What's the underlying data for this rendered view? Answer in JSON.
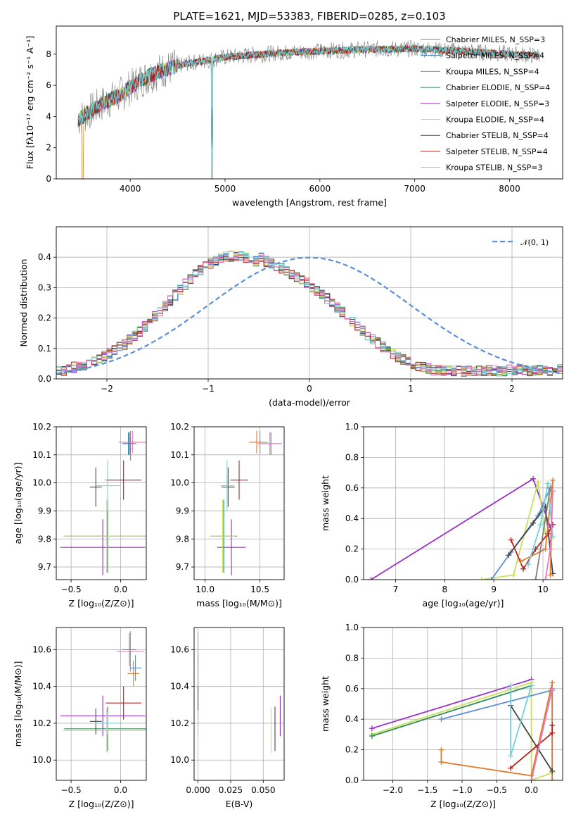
{
  "title": "PLATE=1621, MJD=53383, FIBERID=0285, z=0.103",
  "chart_data": [
    {
      "id": "spectrum",
      "type": "line",
      "xlabel": "wavelength [Angstrom, rest frame]",
      "ylabel": "Flux [fλ10⁻¹⁷ erg cm⁻² s⁻¹ A⁻¹]",
      "xlim": [
        3220,
        8560
      ],
      "ylim": [
        0,
        9.8
      ],
      "xticks": [
        4000,
        5000,
        6000,
        7000,
        8000
      ],
      "yticks": [
        0,
        2,
        4,
        6,
        8
      ],
      "grid": false,
      "legend_position": "right",
      "continuum": {
        "x": [
          3450,
          3550,
          3700,
          3900,
          4100,
          4300,
          4600,
          5000,
          5500,
          6000,
          6500,
          7000,
          7500,
          8000,
          8320
        ],
        "y": [
          3.8,
          4.2,
          4.8,
          5.4,
          6.3,
          6.9,
          7.4,
          7.8,
          8.05,
          8.2,
          8.3,
          8.35,
          8.2,
          8.0,
          7.9
        ]
      },
      "series": [
        {
          "name": "Chabrier MILES, N_SSP=3",
          "color": "#808080"
        },
        {
          "name": "Salpeter MILES, N_SSP=4",
          "color": "#1f77b4"
        },
        {
          "name": "Kroupa MILES, N_SSP=4",
          "color": "#e07b2a"
        },
        {
          "name": "Chabrier ELODIE, N_SSP=4",
          "color": "#2e8b57"
        },
        {
          "name": "Salpeter ELODIE, N_SSP=3",
          "color": "#9b30c8"
        },
        {
          "name": "Kroupa ELODIE, N_SSP=4",
          "color": "#c8e05a"
        },
        {
          "name": "Chabrier STELIB, N_SSP=4",
          "color": "#444444"
        },
        {
          "name": "Salpeter STELIB, N_SSP=4",
          "color": "#b22222"
        },
        {
          "name": "Kroupa STELIB, N_SSP=3",
          "color": "#6fd3da"
        }
      ]
    },
    {
      "id": "residuals",
      "type": "line",
      "xlabel": "(data-model)/error",
      "ylabel": "Normed distribution",
      "xlim": [
        -2.5,
        2.5
      ],
      "ylim": [
        0,
        0.5
      ],
      "xticks": [
        -2,
        -1,
        0,
        1,
        2
      ],
      "yticks": [
        0.0,
        0.1,
        0.2,
        0.3,
        0.4
      ],
      "grid": true,
      "legend": "𝒩(0, 1)",
      "legend_position": "top-right",
      "gaussian": {
        "mean": 0,
        "sigma": 1,
        "color": "#5b8fd9"
      },
      "histogram": {
        "bin_width": 0.1,
        "x_start": -2.5,
        "base": [
          0.028,
          0.027,
          0.032,
          0.038,
          0.04,
          0.046,
          0.052,
          0.058,
          0.066,
          0.074,
          0.083,
          0.092,
          0.104,
          0.114,
          0.128,
          0.141,
          0.156,
          0.172,
          0.188,
          0.205,
          0.222,
          0.24,
          0.259,
          0.276,
          0.294,
          0.311,
          0.328,
          0.343,
          0.357,
          0.369,
          0.38,
          0.389,
          0.396,
          0.401,
          0.403,
          0.404,
          0.402,
          0.399,
          0.394,
          0.387,
          0.399,
          0.386,
          0.38,
          0.372,
          0.363,
          0.353,
          0.345,
          0.337,
          0.328,
          0.316,
          0.302,
          0.291,
          0.279,
          0.264,
          0.252,
          0.236,
          0.221,
          0.206,
          0.19,
          0.174,
          0.16,
          0.145,
          0.131,
          0.118,
          0.105,
          0.093,
          0.082,
          0.073,
          0.064,
          0.056,
          0.049,
          0.043,
          0.038,
          0.033,
          0.029,
          0.03,
          0.026,
          0.028,
          0.025,
          0.027,
          0.024,
          0.026,
          0.025,
          0.026,
          0.025,
          0.026,
          0.028,
          0.025,
          0.027,
          0.03,
          0.028,
          0.03,
          0.029,
          0.027,
          0.028,
          0.03,
          0.027,
          0.028,
          0.029,
          0.03
        ]
      }
    },
    {
      "id": "age_vs_Z",
      "type": "scatter",
      "xlabel": "Z [log₁₀(Z/Z⊙)]",
      "ylabel": "age  [log₁₀(age/yr)]",
      "xlim": [
        -0.65,
        0.26
      ],
      "ylim": [
        9.655,
        10.2
      ],
      "xticks": [
        -0.5,
        0.0
      ],
      "yticks": [
        9.7,
        9.8,
        9.9,
        10.0,
        10.1,
        10.2
      ],
      "grid": true,
      "points": [
        {
          "x": 0.09,
          "y": 10.14,
          "xerr": 0.07,
          "yerr": 0.04,
          "color": "#808080"
        },
        {
          "x": 0.08,
          "y": 10.14,
          "xerr": 0.06,
          "yerr": 0.04,
          "color": "#1f77b4"
        },
        {
          "x": 0.1,
          "y": 10.145,
          "xerr": 0.06,
          "yerr": 0.04,
          "color": "#e07b2a"
        },
        {
          "x": -0.13,
          "y": 9.81,
          "xerr": 0.44,
          "yerr": 0.13,
          "color": "#2e8b57"
        },
        {
          "x": -0.18,
          "y": 9.77,
          "xerr": 0.43,
          "yerr": 0.1,
          "color": "#9b30c8"
        },
        {
          "x": -0.14,
          "y": 9.81,
          "xerr": 0.44,
          "yerr": 0.13,
          "color": "#c8e05a"
        },
        {
          "x": -0.25,
          "y": 9.985,
          "xerr": 0.06,
          "yerr": 0.07,
          "color": "#444444"
        },
        {
          "x": 0.03,
          "y": 10.01,
          "xerr": 0.18,
          "yerr": 0.07,
          "color": "#b22222"
        },
        {
          "x": -0.13,
          "y": 9.99,
          "xerr": 0.13,
          "yerr": 0.09,
          "color": "#6fd3da"
        },
        {
          "x": 0.12,
          "y": 10.145,
          "xerr": 0.14,
          "yerr": 0.04,
          "color": "#e377c2"
        },
        {
          "x": 0.1,
          "y": 10.12,
          "xerr": 0.01,
          "yerr": 0.04,
          "color": "#5b8fd9"
        }
      ]
    },
    {
      "id": "age_vs_mass",
      "type": "scatter",
      "xlabel": "mass [log₁₀(M/M⊙)]",
      "ylabel": "",
      "xlim": [
        9.9,
        10.72
      ],
      "ylim": [
        9.655,
        10.2
      ],
      "xticks": [
        10.0,
        10.5
      ],
      "yticks": [
        9.7,
        9.8,
        9.9,
        10.0,
        10.1,
        10.2
      ],
      "grid": true,
      "points": [
        {
          "x": 10.6,
          "y": 10.14,
          "xerr": 0.09,
          "yerr": 0.04,
          "color": "#808080"
        },
        {
          "x": 10.5,
          "y": 10.145,
          "xerr": 0.07,
          "yerr": 0.04,
          "color": "#5b8fd9"
        },
        {
          "x": 10.47,
          "y": 10.145,
          "xerr": 0.07,
          "yerr": 0.04,
          "color": "#e07b2a"
        },
        {
          "x": 10.17,
          "y": 9.81,
          "xerr": 0.12,
          "yerr": 0.13,
          "color": "#2e8b57"
        },
        {
          "x": 10.24,
          "y": 9.77,
          "xerr": 0.13,
          "yerr": 0.1,
          "color": "#9b30c8"
        },
        {
          "x": 10.16,
          "y": 9.81,
          "xerr": 0.12,
          "yerr": 0.13,
          "color": "#c8e05a"
        },
        {
          "x": 10.21,
          "y": 9.985,
          "xerr": 0.06,
          "yerr": 0.07,
          "color": "#444444"
        },
        {
          "x": 10.31,
          "y": 10.01,
          "xerr": 0.08,
          "yerr": 0.07,
          "color": "#b22222"
        },
        {
          "x": 10.2,
          "y": 9.99,
          "xerr": 0.06,
          "yerr": 0.09,
          "color": "#6fd3da"
        },
        {
          "x": 10.59,
          "y": 10.14,
          "xerr": 0.11,
          "yerr": 0.04,
          "color": "#e377c2"
        }
      ]
    },
    {
      "id": "mass_weight_vs_age",
      "type": "line",
      "xlabel": "age  [log₁₀(age/yr)]",
      "ylabel": "mass weight",
      "xlim": [
        6.35,
        10.4
      ],
      "ylim": [
        0,
        1
      ],
      "xticks": [
        7,
        8,
        9,
        10
      ],
      "yticks": [
        0.0,
        0.2,
        0.4,
        0.6,
        0.8,
        1.0
      ],
      "grid": true,
      "series": [
        {
          "color": "#9b30c8",
          "x": [
            6.5,
            9.8,
            10.15
          ],
          "y": [
            0.0,
            0.66,
            0.34
          ]
        },
        {
          "color": "#c8e05a",
          "x": [
            8.75,
            9.4,
            9.9,
            10.05
          ],
          "y": [
            0.0,
            0.03,
            0.64,
            0.3
          ]
        },
        {
          "color": "#5b8fd9",
          "x": [
            8.95,
            9.35,
            9.9,
            10.15
          ],
          "y": [
            0.0,
            0.18,
            0.42,
            0.6
          ]
        },
        {
          "color": "#444444",
          "x": [
            9.3,
            9.8,
            10.05,
            10.2
          ],
          "y": [
            0.16,
            0.37,
            0.48,
            0.04
          ]
        },
        {
          "color": "#b22222",
          "x": [
            9.35,
            9.6,
            9.85,
            10.1,
            10.2
          ],
          "y": [
            0.26,
            0.07,
            0.2,
            0.3,
            0.36
          ]
        },
        {
          "color": "#e07b2a",
          "x": [
            9.55,
            10.05,
            10.2,
            10.15
          ],
          "y": [
            0.12,
            0.2,
            0.65,
            0.03
          ]
        },
        {
          "color": "#6fd3da",
          "x": [
            9.7,
            9.95,
            10.1,
            10.2
          ],
          "y": [
            0.1,
            0.36,
            0.63,
            0.28
          ]
        },
        {
          "color": "#e377c2",
          "x": [
            10.05,
            10.15,
            10.2
          ],
          "y": [
            0.0,
            0.2,
            0.58
          ]
        },
        {
          "color": "#808080",
          "x": [
            9.85,
            10.15
          ],
          "y": [
            0.0,
            0.6
          ]
        }
      ]
    },
    {
      "id": "mass_vs_Z",
      "type": "scatter",
      "xlabel": "Z [log₁₀(Z/Z⊙)]",
      "ylabel": "mass [log₁₀(M/M⊙)]",
      "xlim": [
        -0.65,
        0.26
      ],
      "ylim": [
        9.89,
        10.72
      ],
      "xticks": [
        -0.5,
        0.0
      ],
      "yticks": [
        10.0,
        10.2,
        10.4,
        10.6
      ],
      "grid": true,
      "points": [
        {
          "x": 0.09,
          "y": 10.6,
          "xerr": 0.07,
          "yerr": 0.09,
          "color": "#808080"
        },
        {
          "x": 0.15,
          "y": 10.5,
          "xerr": 0.06,
          "yerr": 0.07,
          "color": "#5b8fd9"
        },
        {
          "x": 0.13,
          "y": 10.47,
          "xerr": 0.06,
          "yerr": 0.07,
          "color": "#e07b2a"
        },
        {
          "x": -0.13,
          "y": 10.17,
          "xerr": 0.44,
          "yerr": 0.12,
          "color": "#2e8b57"
        },
        {
          "x": -0.18,
          "y": 10.24,
          "xerr": 0.43,
          "yerr": 0.11,
          "color": "#9b30c8"
        },
        {
          "x": -0.14,
          "y": 10.16,
          "xerr": 0.44,
          "yerr": 0.12,
          "color": "#c8e05a"
        },
        {
          "x": -0.25,
          "y": 10.21,
          "xerr": 0.06,
          "yerr": 0.07,
          "color": "#444444"
        },
        {
          "x": 0.03,
          "y": 10.31,
          "xerr": 0.18,
          "yerr": 0.09,
          "color": "#b22222"
        },
        {
          "x": -0.13,
          "y": 10.2,
          "xerr": 0.13,
          "yerr": 0.06,
          "color": "#6fd3da"
        },
        {
          "x": 0.1,
          "y": 10.59,
          "xerr": 0.14,
          "yerr": 0.11,
          "color": "#e377c2"
        }
      ]
    },
    {
      "id": "mass_vs_ebv",
      "type": "scatter",
      "xlabel": "E(B-V)",
      "ylabel": "",
      "xlim": [
        -0.003,
        0.066
      ],
      "ylim": [
        9.89,
        10.72
      ],
      "xticks": [
        0.0,
        0.025,
        0.05
      ],
      "xticklabels": [
        "0.000",
        "0.025",
        "0.050"
      ],
      "yticks": [
        10.0,
        10.2,
        10.4,
        10.6
      ],
      "grid": true,
      "points": [
        {
          "x": 0.0,
          "y": 10.6,
          "xerr": 0.0,
          "yerr": 0.09,
          "color": "#e377c2"
        },
        {
          "x": 0.0,
          "y": 10.47,
          "xerr": 0.0,
          "yerr": 0.1,
          "color": "#e07b2a"
        },
        {
          "x": 0.0,
          "y": 10.31,
          "xerr": 0.0,
          "yerr": 0.09,
          "color": "#b22222"
        },
        {
          "x": 0.0,
          "y": 10.2,
          "xerr": 0.0,
          "yerr": 0.07,
          "color": "#6fd3da"
        },
        {
          "x": 0.056,
          "y": 10.16,
          "xerr": 0.0,
          "yerr": 0.12,
          "color": "#c8e05a"
        },
        {
          "x": 0.059,
          "y": 10.17,
          "xerr": 0.0,
          "yerr": 0.12,
          "color": "#444444"
        },
        {
          "x": 0.063,
          "y": 10.24,
          "xerr": 0.0,
          "yerr": 0.11,
          "color": "#9b30c8"
        }
      ]
    },
    {
      "id": "mass_weight_vs_Z",
      "type": "line",
      "xlabel": "Z [log₁₀(Z/Z⊙)]",
      "ylabel": "mass weight",
      "xlim": [
        -2.42,
        0.45
      ],
      "ylim": [
        0,
        1
      ],
      "xticks": [
        -2.0,
        -1.5,
        -1.0,
        -0.5,
        0.0
      ],
      "yticks": [
        0.0,
        0.2,
        0.4,
        0.6,
        0.8,
        1.0
      ],
      "grid": true,
      "series": [
        {
          "color": "#9b30c8",
          "x": [
            -2.3,
            0.0
          ],
          "y": [
            0.34,
            0.66
          ]
        },
        {
          "color": "#c8e05a",
          "x": [
            -2.3,
            0.0,
            0.0,
            0.3
          ],
          "y": [
            0.3,
            0.64,
            0.0,
            0.05
          ]
        },
        {
          "color": "#2e8b57",
          "x": [
            -2.3,
            0.0
          ],
          "y": [
            0.29,
            0.62
          ]
        },
        {
          "color": "#5b8fd9",
          "x": [
            -1.3,
            0.3,
            0.3
          ],
          "y": [
            0.4,
            0.59,
            0.0
          ]
        },
        {
          "color": "#e07b2a",
          "x": [
            -1.3,
            -1.3,
            0.0,
            0.3,
            0.3
          ],
          "y": [
            0.2,
            0.12,
            0.03,
            0.64,
            0.0
          ]
        },
        {
          "color": "#444444",
          "x": [
            -0.3,
            0.3
          ],
          "y": [
            0.49,
            0.06
          ]
        },
        {
          "color": "#6fd3da",
          "x": [
            -0.3,
            -0.3,
            0.0
          ],
          "y": [
            0.62,
            0.16,
            0.62
          ]
        },
        {
          "color": "#b22222",
          "x": [
            -0.3,
            0.3,
            0.3
          ],
          "y": [
            0.08,
            0.31,
            0.36
          ]
        },
        {
          "color": "#e377c2",
          "x": [
            0.0,
            0.3
          ],
          "y": [
            0.0,
            0.6
          ]
        }
      ]
    }
  ]
}
